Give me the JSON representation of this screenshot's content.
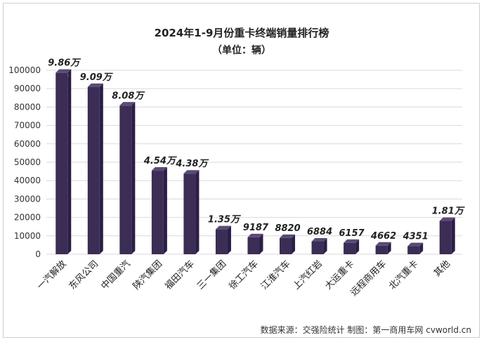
{
  "chart_data": {
    "type": "bar",
    "title": "2024年1-9月份重卡终端销量排行榜",
    "subtitle": "（单位：辆）",
    "categories": [
      "一汽解放",
      "东风公司",
      "中国重汽",
      "陕汽集团",
      "福田汽车",
      "三一集团",
      "徐工汽车",
      "江淮汽车",
      "上汽红岩",
      "大运重卡",
      "远程商用车",
      "北汽重卡",
      "其他"
    ],
    "values": [
      98600,
      90900,
      80800,
      45400,
      43800,
      13500,
      9187,
      8820,
      6884,
      6157,
      4662,
      4351,
      18100
    ],
    "data_labels": [
      "9.86万",
      "9.09万",
      "8.08万",
      "4.54万",
      "4.38万",
      "1.35万",
      "9187",
      "8820",
      "6884",
      "6157",
      "4662",
      "4351",
      "1.81万"
    ],
    "yticks": [
      "0",
      "10000",
      "20000",
      "30000",
      "40000",
      "50000",
      "60000",
      "70000",
      "80000",
      "90000",
      "100000"
    ],
    "ylim": [
      0,
      100000
    ],
    "grid": true,
    "bar_color": "#3b2d55"
  },
  "source_note": "数据来源：交强险统计  制图：第一商用车网 cvworld.cn"
}
